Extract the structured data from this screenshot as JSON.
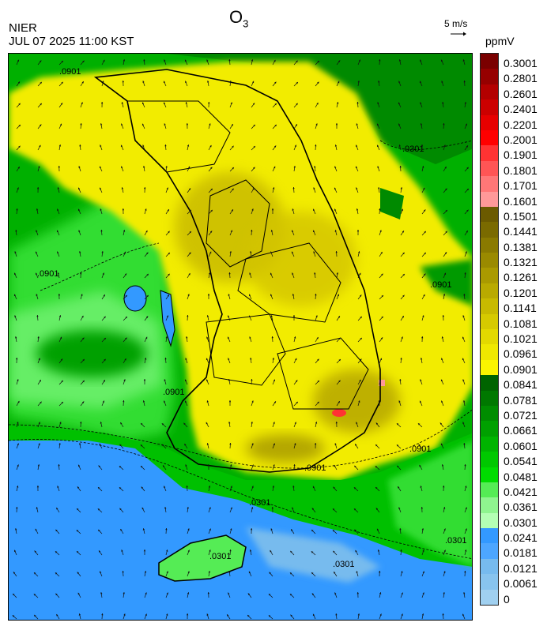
{
  "header": {
    "agency": "NIER",
    "timestamp": "JUL 07 2025 11:00 KST",
    "title_main": "O",
    "title_sub": "3"
  },
  "wind_reference": {
    "label": "5 m/s"
  },
  "colorbar": {
    "unit": "ppmV",
    "levels": [
      {
        "label": "0.3001",
        "color": "#7a0000"
      },
      {
        "label": "0.2801",
        "color": "#960000"
      },
      {
        "label": "0.2601",
        "color": "#b30000"
      },
      {
        "label": "0.2401",
        "color": "#cc0000"
      },
      {
        "label": "0.2201",
        "color": "#e60000"
      },
      {
        "label": "0.2001",
        "color": "#ff0000"
      },
      {
        "label": "0.1901",
        "color": "#ff3333"
      },
      {
        "label": "0.1801",
        "color": "#ff5555"
      },
      {
        "label": "0.1701",
        "color": "#ff7777"
      },
      {
        "label": "0.1601",
        "color": "#ff9999"
      },
      {
        "label": "0.1501",
        "color": "#6b5a00"
      },
      {
        "label": "0.1441",
        "color": "#7a6a00"
      },
      {
        "label": "0.1381",
        "color": "#8a7a00"
      },
      {
        "label": "0.1321",
        "color": "#9a8a00"
      },
      {
        "label": "0.1261",
        "color": "#aa9a00"
      },
      {
        "label": "0.1201",
        "color": "#b9aa00"
      },
      {
        "label": "0.1141",
        "color": "#c8ba00"
      },
      {
        "label": "0.1081",
        "color": "#d6ca00"
      },
      {
        "label": "0.1021",
        "color": "#e3d900"
      },
      {
        "label": "0.0961",
        "color": "#efe800"
      },
      {
        "label": "0.0901",
        "color": "#fbf500"
      },
      {
        "label": "0.0841",
        "color": "#006400"
      },
      {
        "label": "0.0781",
        "color": "#007800"
      },
      {
        "label": "0.0721",
        "color": "#008c00"
      },
      {
        "label": "0.0661",
        "color": "#00a000"
      },
      {
        "label": "0.0601",
        "color": "#00b400"
      },
      {
        "label": "0.0541",
        "color": "#00c800"
      },
      {
        "label": "0.0481",
        "color": "#00dc00"
      },
      {
        "label": "0.0421",
        "color": "#55ec55"
      },
      {
        "label": "0.0361",
        "color": "#8ff58f"
      },
      {
        "label": "0.0301",
        "color": "#b4ffb4"
      },
      {
        "label": "0.0241",
        "color": "#3399ff"
      },
      {
        "label": "0.0181",
        "color": "#4da6ff"
      },
      {
        "label": "0.0121",
        "color": "#77bbee"
      },
      {
        "label": "0.0061",
        "color": "#88c4ee"
      },
      {
        "label": "0",
        "color": "#a0d0f0"
      }
    ]
  },
  "map": {
    "contour_labels": [
      ".0901",
      ".0301",
      ".0901",
      ".0901",
      ".0901",
      ".0901",
      ".0301",
      ".0301",
      ".0301",
      ".0301",
      ".0901"
    ]
  }
}
